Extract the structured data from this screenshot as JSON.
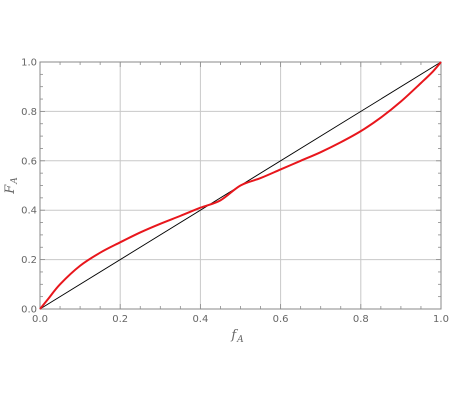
{
  "chart_data": {
    "type": "line",
    "title": "",
    "xlabel": "f",
    "xlabel_sub": "A",
    "ylabel": "F",
    "ylabel_sub": "A",
    "xlim": [
      0,
      1
    ],
    "ylim": [
      0,
      1
    ],
    "x_ticks": [
      "0.0",
      "0.2",
      "0.4",
      "0.6",
      "0.8",
      "1.0"
    ],
    "y_ticks": [
      "0.0",
      "0.2",
      "0.4",
      "0.6",
      "0.8",
      "1.0"
    ],
    "grid": true,
    "colors": {
      "curve": "#e8161c",
      "diagonal": "#000000",
      "grid": "#c8c8c8",
      "frame": "#8a8a8a",
      "tick_text": "#666666"
    },
    "series": [
      {
        "key": "curve",
        "x": [
          0.0,
          0.02,
          0.05,
          0.1,
          0.15,
          0.2,
          0.25,
          0.3,
          0.35,
          0.4,
          0.45,
          0.5,
          0.55,
          0.6,
          0.65,
          0.7,
          0.75,
          0.8,
          0.85,
          0.9,
          0.95,
          0.98,
          1.0
        ],
        "y": [
          0.0,
          0.04,
          0.1,
          0.175,
          0.228,
          0.27,
          0.31,
          0.345,
          0.377,
          0.41,
          0.44,
          0.5,
          0.53,
          0.565,
          0.6,
          0.635,
          0.675,
          0.72,
          0.775,
          0.84,
          0.915,
          0.962,
          1.0
        ]
      },
      {
        "key": "diagonal",
        "x": [
          0.0,
          1.0
        ],
        "y": [
          0.0,
          1.0
        ]
      }
    ]
  }
}
